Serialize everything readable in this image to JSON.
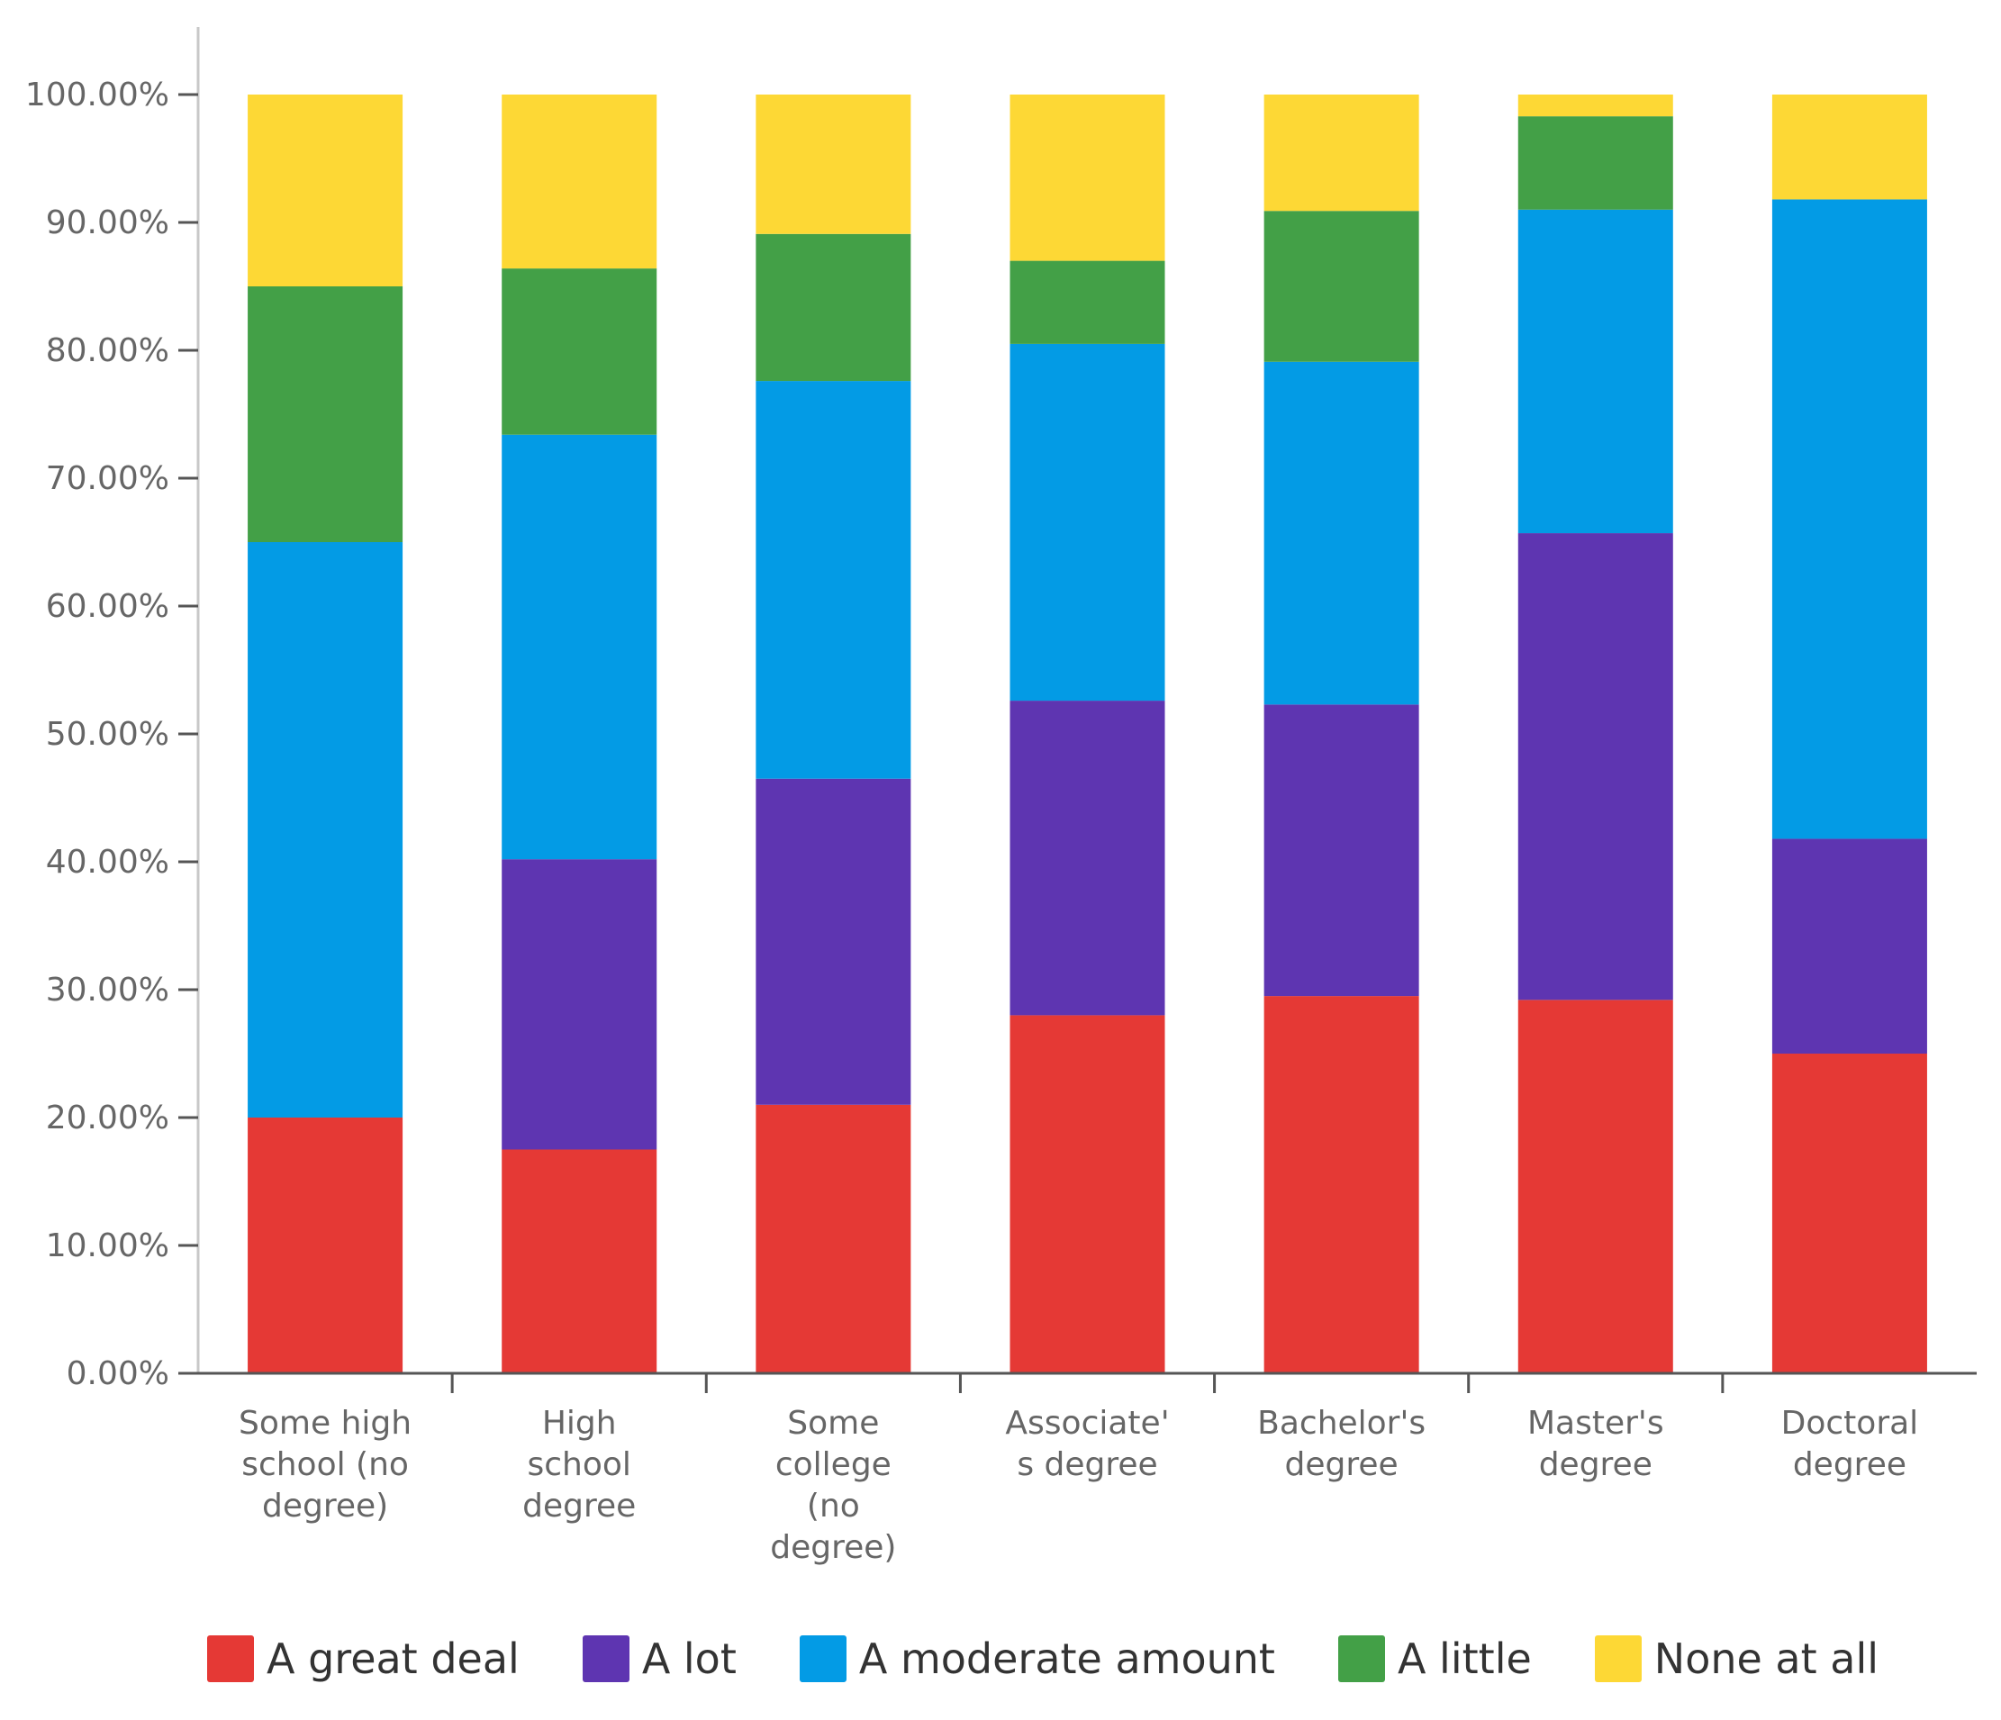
{
  "chart_data": {
    "type": "stacked-bar",
    "title": "",
    "xlabel": "",
    "ylabel": "",
    "ylim": [
      0,
      100
    ],
    "y_ticks": [
      "0.00%",
      "10.00%",
      "20.00%",
      "30.00%",
      "40.00%",
      "50.00%",
      "60.00%",
      "70.00%",
      "80.00%",
      "90.00%",
      "100.00%"
    ],
    "grid": false,
    "legend_position": "bottom",
    "categories": [
      [
        "Some high",
        "school (no",
        "degree)"
      ],
      [
        "High",
        "school",
        "degree"
      ],
      [
        "Some",
        "college",
        "(no",
        "degree)"
      ],
      [
        "Associate'",
        "s degree"
      ],
      [
        "Bachelor's",
        "degree"
      ],
      [
        "Master's",
        "degree"
      ],
      [
        "Doctoral",
        "degree"
      ]
    ],
    "series": [
      {
        "name": "A great deal",
        "color": "#e53935",
        "values": [
          20.0,
          17.5,
          21.0,
          28.0,
          29.5,
          29.2,
          25.0
        ]
      },
      {
        "name": "A lot",
        "color": "#5e35b1",
        "values": [
          0.0,
          22.7,
          25.5,
          24.6,
          22.8,
          36.5,
          16.8
        ]
      },
      {
        "name": "A moderate amount",
        "color": "#039be5",
        "values": [
          45.0,
          33.2,
          31.1,
          27.9,
          26.8,
          25.3,
          50.0
        ]
      },
      {
        "name": "A little",
        "color": "#43a047",
        "values": [
          20.0,
          13.0,
          11.5,
          6.5,
          11.8,
          7.3,
          0.0
        ]
      },
      {
        "name": "None at all",
        "color": "#fdd835",
        "values": [
          15.0,
          13.6,
          10.9,
          13.0,
          9.1,
          1.7,
          8.2
        ]
      }
    ]
  }
}
